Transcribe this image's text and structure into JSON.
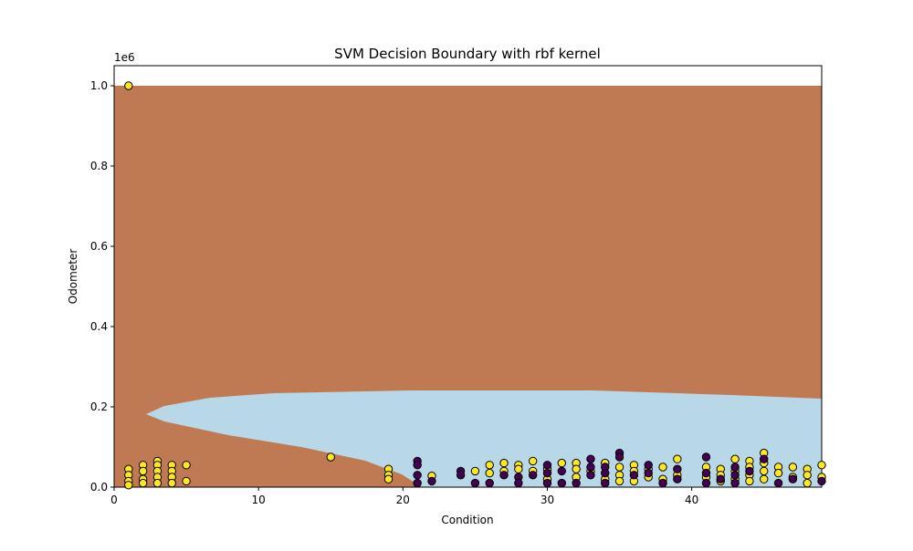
{
  "chart_data": {
    "type": "scatter",
    "title": "SVM Decision Boundary with rbf kernel",
    "x_label": "Condition",
    "y_label": "Odometer",
    "y_offset_label": "1e6",
    "xlim": [
      0,
      49
    ],
    "ylim": [
      0,
      1050000
    ],
    "xticks": [
      0,
      10,
      20,
      30,
      40
    ],
    "yticks": [
      {
        "value": 0,
        "label": "0.0"
      },
      {
        "value": 200000,
        "label": "0.2"
      },
      {
        "value": 400000,
        "label": "0.4"
      },
      {
        "value": 600000,
        "label": "0.6"
      },
      {
        "value": 800000,
        "label": "0.8"
      },
      {
        "value": 1000000,
        "label": "1.0"
      }
    ],
    "series": [
      {
        "color": "#fde725",
        "x": [
          1,
          1,
          1,
          1,
          1,
          2,
          2,
          2,
          2,
          3,
          3,
          3,
          3,
          3,
          4,
          4,
          4,
          4,
          5,
          5,
          15,
          19,
          19,
          19,
          22,
          25,
          26,
          26,
          27,
          27,
          28,
          28,
          29,
          29,
          30,
          30,
          31,
          32,
          32,
          32,
          33,
          34,
          34,
          35,
          35,
          35,
          36,
          36,
          36,
          37,
          37,
          38,
          38,
          39,
          39,
          41,
          41,
          42,
          42,
          42,
          43,
          43,
          43,
          44,
          44,
          44,
          44,
          45,
          45,
          45,
          45,
          46,
          46,
          47,
          47,
          48,
          48,
          48,
          49,
          49
        ],
        "values": [
          1000000,
          45000,
          30000,
          15000,
          5000,
          55000,
          40000,
          20000,
          10000,
          65000,
          55000,
          40000,
          25000,
          10000,
          55000,
          40000,
          25000,
          10000,
          55000,
          15000,
          75000,
          45000,
          30000,
          20000,
          28000,
          40000,
          55000,
          35000,
          60000,
          40000,
          55000,
          45000,
          65000,
          40000,
          45000,
          20000,
          60000,
          60000,
          45000,
          25000,
          40000,
          60000,
          20000,
          50000,
          30000,
          15000,
          55000,
          40000,
          15000,
          45000,
          25000,
          50000,
          20000,
          70000,
          30000,
          50000,
          25000,
          45000,
          30000,
          15000,
          70000,
          40000,
          20000,
          65000,
          50000,
          30000,
          15000,
          85000,
          60000,
          40000,
          20000,
          50000,
          35000,
          50000,
          25000,
          45000,
          30000,
          10000,
          55000,
          25000
        ]
      },
      {
        "color": "#440154",
        "x": [
          21,
          21,
          21,
          21,
          22,
          24,
          24,
          25,
          26,
          27,
          28,
          28,
          29,
          30,
          30,
          30,
          31,
          31,
          32,
          33,
          33,
          33,
          34,
          34,
          34,
          35,
          35,
          36,
          37,
          37,
          38,
          39,
          39,
          41,
          41,
          41,
          42,
          43,
          43,
          43,
          44,
          45,
          46,
          47,
          49
        ],
        "values": [
          65000,
          55000,
          30000,
          10000,
          15000,
          40000,
          30000,
          10000,
          10000,
          30000,
          25000,
          10000,
          30000,
          55000,
          35000,
          10000,
          40000,
          10000,
          10000,
          70000,
          50000,
          30000,
          50000,
          35000,
          10000,
          85000,
          75000,
          30000,
          55000,
          35000,
          10000,
          45000,
          20000,
          75000,
          35000,
          10000,
          20000,
          50000,
          30000,
          10000,
          40000,
          70000,
          10000,
          20000,
          15000
        ]
      }
    ]
  }
}
